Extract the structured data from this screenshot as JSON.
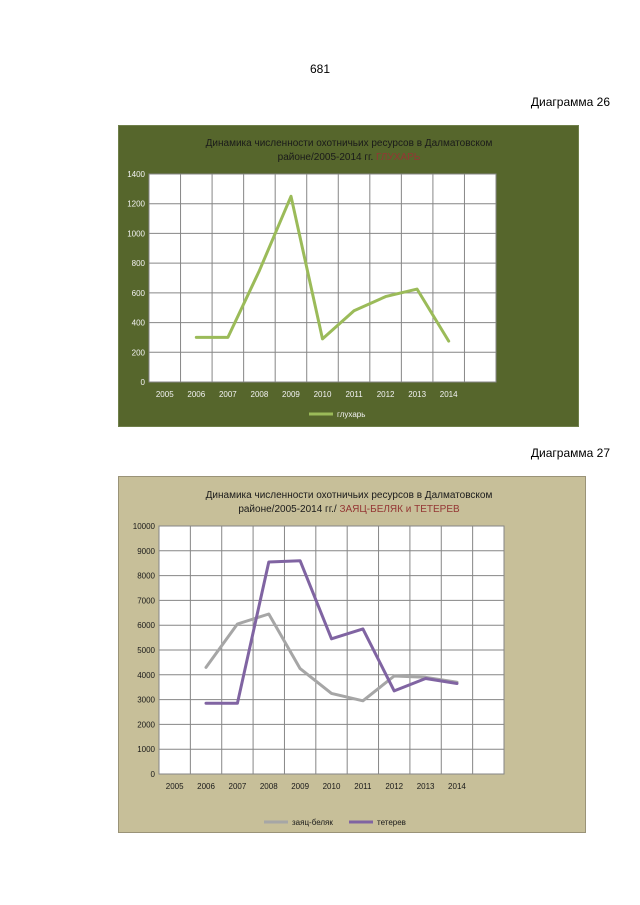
{
  "page_number": "681",
  "diagram_labels": [
    "Диаграмма 26",
    "Диаграмма 27"
  ],
  "colors": {
    "chart1_bg": "#56662c",
    "chart2_bg": "#c7bf99",
    "grouse_line": "#9bbb59",
    "hare_line": "#a6a6a6",
    "blackgrouse_line": "#8064a2",
    "title_accent": "#943634"
  },
  "chart_data": [
    {
      "type": "line",
      "title_line1": "Динамика численности охотничьих ресурсов в Далматовском",
      "title_line2": "районе/2005-2014 гг.",
      "title_accent": "ГЛУХАРЬ",
      "x": [
        "2005",
        "2006",
        "2007",
        "2008",
        "2009",
        "2010",
        "2011",
        "2012",
        "2013",
        "2014"
      ],
      "series": [
        {
          "name": "глухарь",
          "values": [
            null,
            300,
            300,
            750,
            1250,
            290,
            480,
            575,
            625,
            275
          ]
        }
      ],
      "ylim": [
        0,
        1400
      ],
      "yticks": [
        0,
        200,
        400,
        600,
        800,
        1000,
        1200,
        1400
      ],
      "grid": true,
      "legend": "bottom"
    },
    {
      "type": "line",
      "title_line1": "Динамика численности  охотничьих  ресурсов  в Далматовском",
      "title_line2": "районе/2005-2014  гг./",
      "title_accent": "ЗАЯЦ-БЕЛЯК и ТЕТЕРЕВ",
      "x": [
        "2005",
        "2006",
        "2007",
        "2008",
        "2009",
        "2010",
        "2011",
        "2012",
        "2013",
        "2014"
      ],
      "series": [
        {
          "name": "заяц-беляк",
          "values": [
            null,
            4300,
            6050,
            6450,
            4250,
            3250,
            2950,
            3950,
            3900,
            3700
          ]
        },
        {
          "name": "тетерев",
          "values": [
            null,
            2850,
            2850,
            8550,
            8600,
            5450,
            5850,
            3350,
            3850,
            3650
          ]
        }
      ],
      "ylim": [
        0,
        10000
      ],
      "yticks": [
        0,
        1000,
        2000,
        3000,
        4000,
        5000,
        6000,
        7000,
        8000,
        9000,
        10000
      ],
      "grid": true,
      "legend": "bottom"
    }
  ]
}
